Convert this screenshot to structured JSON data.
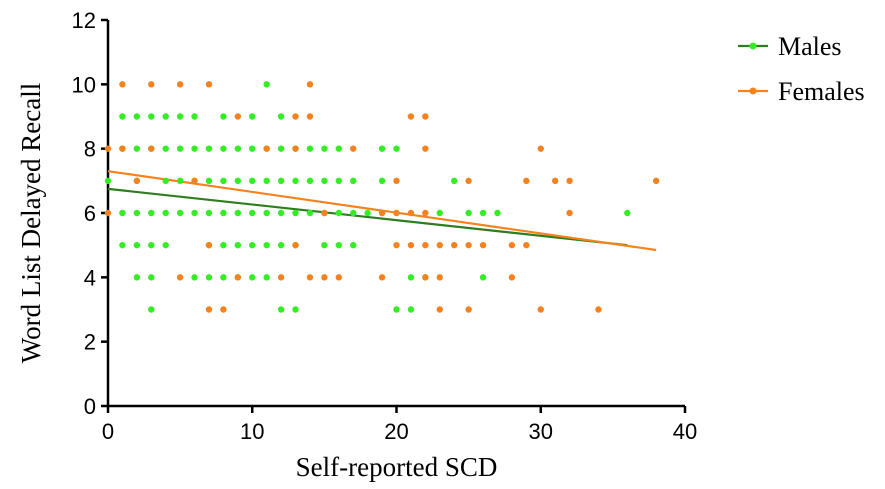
{
  "chart_data": {
    "type": "scatter",
    "xlabel": "Self-reported SCD",
    "ylabel": "Word List Delayed Recall",
    "xlim": [
      0,
      40
    ],
    "ylim": [
      0,
      12
    ],
    "xticks": [
      0,
      10,
      20,
      30,
      40
    ],
    "yticks": [
      0,
      2,
      4,
      6,
      8,
      10,
      12
    ],
    "grid": false,
    "legend_position": "top-right",
    "series": [
      {
        "name": "Males",
        "color": "#33ee22",
        "line_color": "#2e7d1e",
        "fit": {
          "x": [
            0,
            36
          ],
          "y": [
            6.75,
            5.0
          ]
        },
        "points": [
          [
            0,
            7
          ],
          [
            1,
            9
          ],
          [
            1,
            8
          ],
          [
            1,
            6
          ],
          [
            1,
            5
          ],
          [
            2,
            9
          ],
          [
            2,
            8
          ],
          [
            2,
            7
          ],
          [
            2,
            6
          ],
          [
            2,
            5
          ],
          [
            2,
            4
          ],
          [
            3,
            9
          ],
          [
            3,
            8
          ],
          [
            3,
            6
          ],
          [
            3,
            5
          ],
          [
            3,
            4
          ],
          [
            3,
            3
          ],
          [
            4,
            9
          ],
          [
            4,
            8
          ],
          [
            4,
            7
          ],
          [
            4,
            6
          ],
          [
            4,
            5
          ],
          [
            5,
            9
          ],
          [
            5,
            8
          ],
          [
            5,
            7
          ],
          [
            5,
            6
          ],
          [
            6,
            9
          ],
          [
            6,
            8
          ],
          [
            6,
            7
          ],
          [
            6,
            6
          ],
          [
            6,
            4
          ],
          [
            7,
            8
          ],
          [
            7,
            7
          ],
          [
            7,
            6
          ],
          [
            7,
            5
          ],
          [
            7,
            4
          ],
          [
            8,
            9
          ],
          [
            8,
            8
          ],
          [
            8,
            7
          ],
          [
            8,
            6
          ],
          [
            8,
            5
          ],
          [
            8,
            4
          ],
          [
            9,
            8
          ],
          [
            9,
            7
          ],
          [
            9,
            6
          ],
          [
            9,
            5
          ],
          [
            9,
            4
          ],
          [
            10,
            9
          ],
          [
            10,
            8
          ],
          [
            10,
            7
          ],
          [
            10,
            6
          ],
          [
            10,
            5
          ],
          [
            10,
            4
          ],
          [
            11,
            10
          ],
          [
            11,
            8
          ],
          [
            11,
            7
          ],
          [
            11,
            6
          ],
          [
            11,
            5
          ],
          [
            11,
            4
          ],
          [
            12,
            9
          ],
          [
            12,
            8
          ],
          [
            12,
            7
          ],
          [
            12,
            6
          ],
          [
            12,
            5
          ],
          [
            12,
            3
          ],
          [
            13,
            8
          ],
          [
            13,
            7
          ],
          [
            13,
            6
          ],
          [
            13,
            5
          ],
          [
            13,
            3
          ],
          [
            14,
            8
          ],
          [
            14,
            7
          ],
          [
            14,
            6
          ],
          [
            15,
            8
          ],
          [
            15,
            7
          ],
          [
            15,
            6
          ],
          [
            15,
            5
          ],
          [
            16,
            8
          ],
          [
            16,
            7
          ],
          [
            16,
            6
          ],
          [
            16,
            5
          ],
          [
            17,
            7
          ],
          [
            17,
            6
          ],
          [
            17,
            5
          ],
          [
            18,
            6
          ],
          [
            19,
            8
          ],
          [
            19,
            7
          ],
          [
            19,
            6
          ],
          [
            20,
            8
          ],
          [
            20,
            6
          ],
          [
            20,
            3
          ],
          [
            21,
            4
          ],
          [
            21,
            3
          ],
          [
            22,
            4
          ],
          [
            23,
            6
          ],
          [
            24,
            7
          ],
          [
            25,
            6
          ],
          [
            26,
            6
          ],
          [
            26,
            4
          ],
          [
            27,
            6
          ],
          [
            36,
            6
          ]
        ]
      },
      {
        "name": "Females",
        "color": "#f5821e",
        "line_color": "#f5821e",
        "fit": {
          "x": [
            0,
            38
          ],
          "y": [
            7.3,
            4.85
          ]
        },
        "points": [
          [
            0,
            8
          ],
          [
            0,
            6
          ],
          [
            1,
            10
          ],
          [
            1,
            8
          ],
          [
            2,
            7
          ],
          [
            3,
            10
          ],
          [
            3,
            8
          ],
          [
            5,
            10
          ],
          [
            5,
            4
          ],
          [
            6,
            7
          ],
          [
            7,
            10
          ],
          [
            7,
            5
          ],
          [
            7,
            3
          ],
          [
            8,
            3
          ],
          [
            9,
            9
          ],
          [
            9,
            4
          ],
          [
            11,
            8
          ],
          [
            12,
            4
          ],
          [
            13,
            9
          ],
          [
            13,
            8
          ],
          [
            13,
            5
          ],
          [
            14,
            10
          ],
          [
            14,
            9
          ],
          [
            14,
            4
          ],
          [
            15,
            6
          ],
          [
            15,
            4
          ],
          [
            16,
            4
          ],
          [
            17,
            8
          ],
          [
            19,
            6
          ],
          [
            19,
            4
          ],
          [
            20,
            7
          ],
          [
            20,
            6
          ],
          [
            20,
            5
          ],
          [
            21,
            9
          ],
          [
            21,
            6
          ],
          [
            21,
            5
          ],
          [
            22,
            9
          ],
          [
            22,
            8
          ],
          [
            22,
            6
          ],
          [
            22,
            5
          ],
          [
            22,
            4
          ],
          [
            23,
            5
          ],
          [
            23,
            4
          ],
          [
            23,
            3
          ],
          [
            24,
            5
          ],
          [
            25,
            7
          ],
          [
            25,
            5
          ],
          [
            25,
            3
          ],
          [
            26,
            5
          ],
          [
            28,
            5
          ],
          [
            28,
            4
          ],
          [
            29,
            7
          ],
          [
            29,
            5
          ],
          [
            30,
            8
          ],
          [
            30,
            3
          ],
          [
            31,
            7
          ],
          [
            32,
            7
          ],
          [
            32,
            6
          ],
          [
            34,
            3
          ],
          [
            38,
            7
          ]
        ]
      }
    ]
  }
}
